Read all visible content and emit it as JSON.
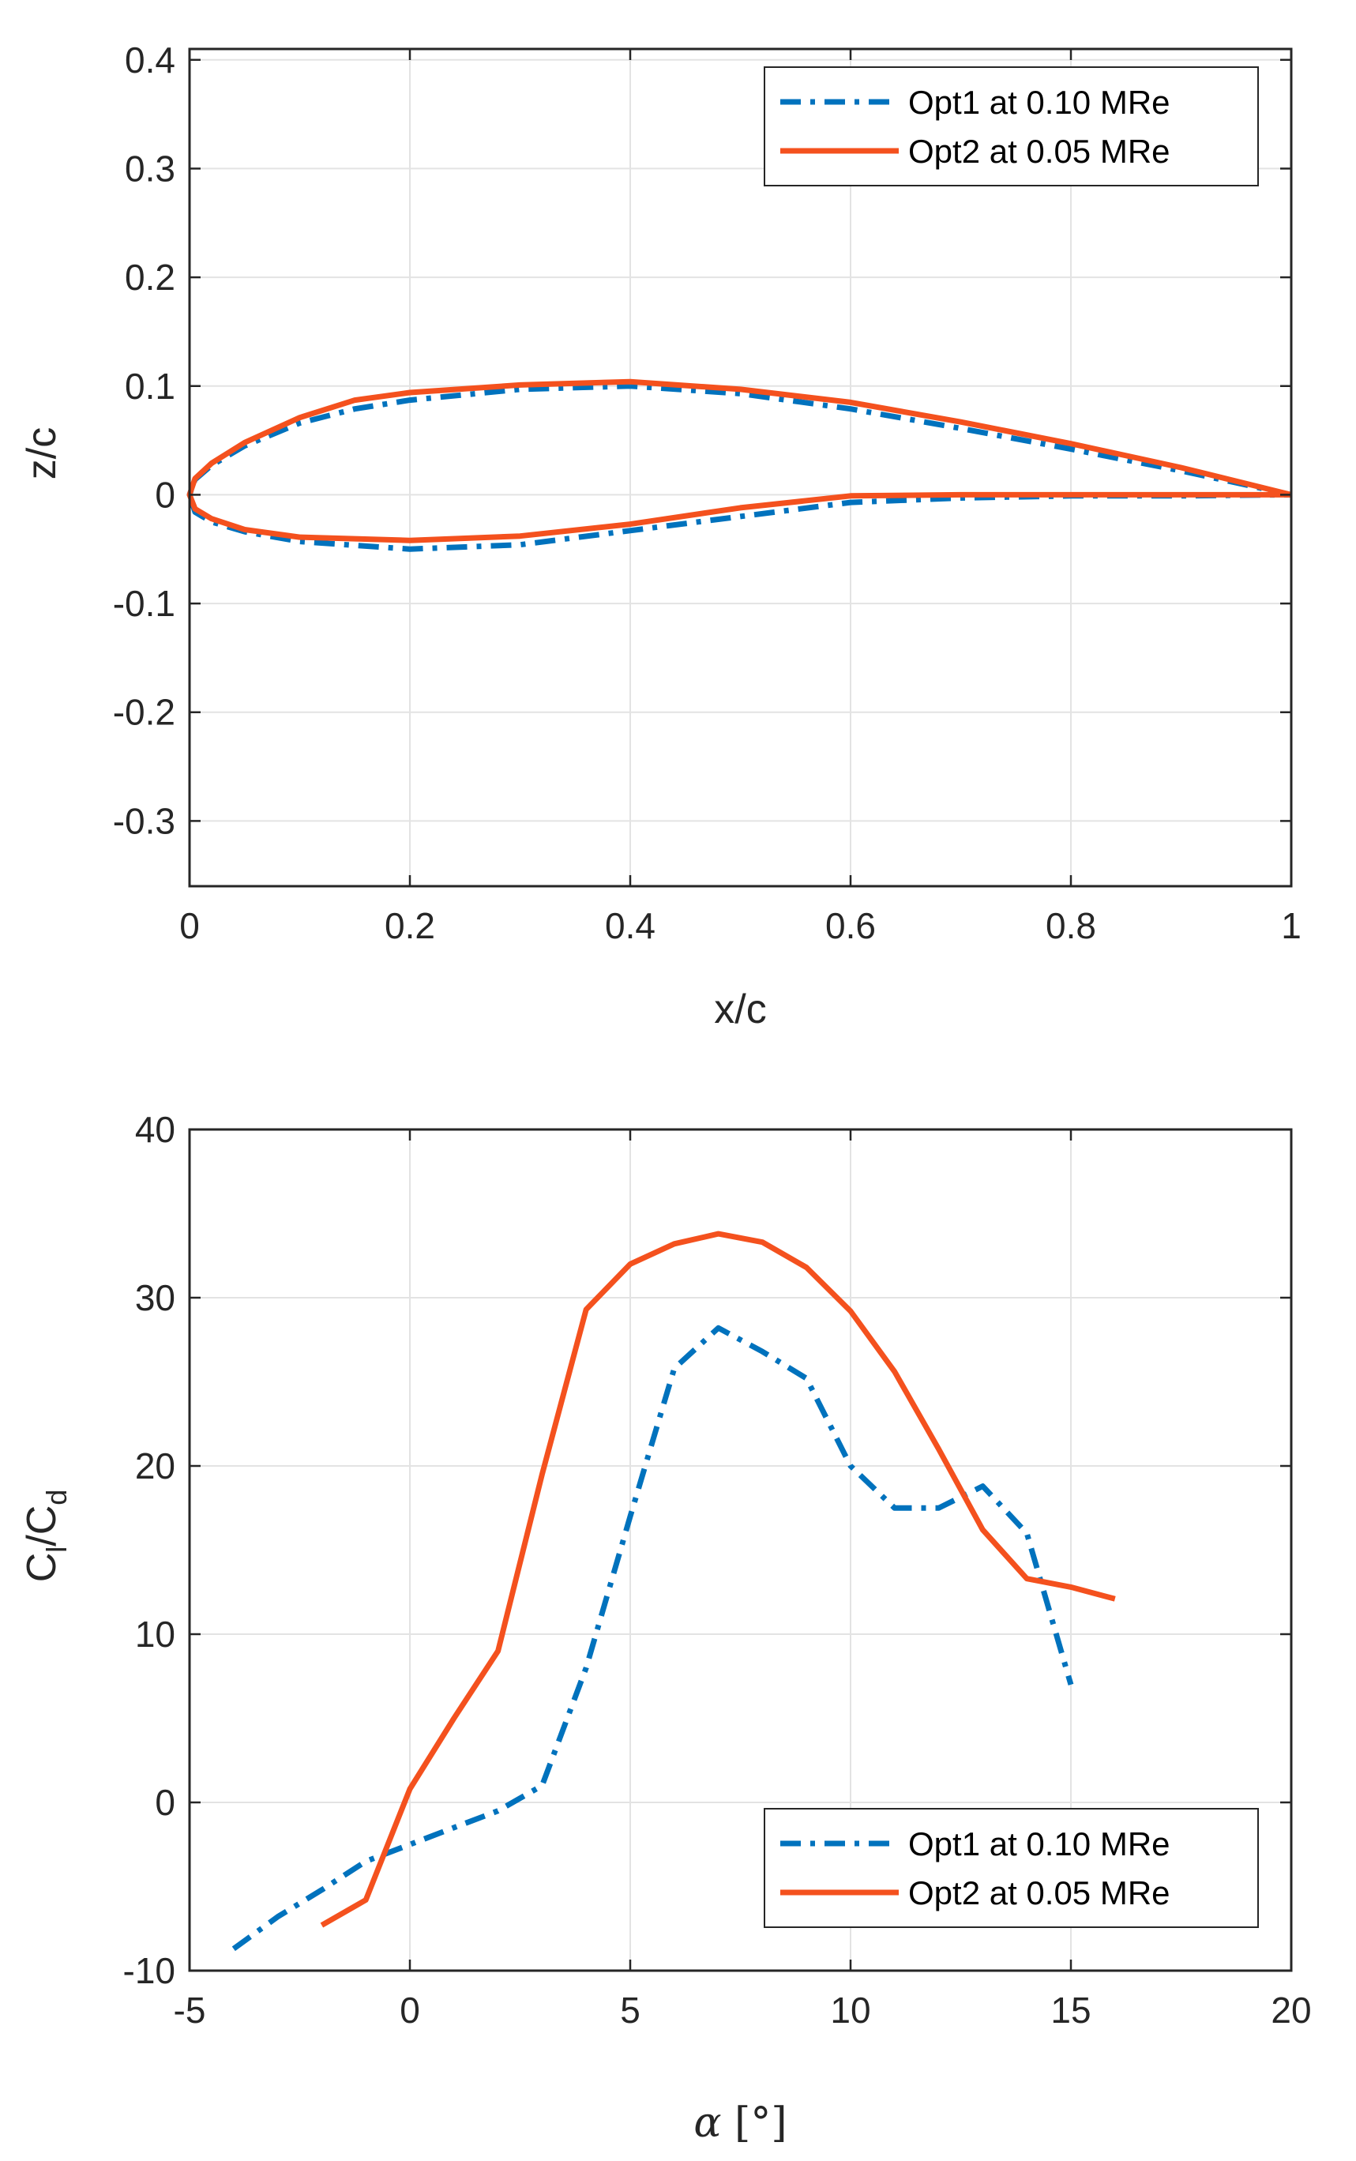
{
  "colors": {
    "opt1": "#0072BD",
    "opt2": "#F4511E"
  },
  "chart_data": [
    {
      "type": "line",
      "xlabel": "x/c",
      "ylabel": "z/c",
      "xlim": [
        0,
        1
      ],
      "ylim": [
        -0.36,
        0.41
      ],
      "xticks": [
        0,
        0.2,
        0.4,
        0.6,
        0.8,
        1
      ],
      "xtick_labels": [
        "0",
        "0.2",
        "0.4",
        "0.6",
        "0.8",
        "1"
      ],
      "yticks": [
        -0.3,
        -0.2,
        -0.1,
        0,
        0.1,
        0.2,
        0.3,
        0.4
      ],
      "ytick_labels": [
        "-0.3",
        "-0.2",
        "-0.1",
        "0",
        "0.1",
        "0.2",
        "0.3",
        "0.4"
      ],
      "grid": true,
      "legend_position": "top-right",
      "series": [
        {
          "name": "Opt1 at 0.10 MRe",
          "style": "dash-dot",
          "color": "#0072BD",
          "x": [
            1.0,
            0.9,
            0.8,
            0.7,
            0.6,
            0.5,
            0.4,
            0.3,
            0.2,
            0.15,
            0.1,
            0.05,
            0.02,
            0.005,
            0.0,
            0.005,
            0.02,
            0.05,
            0.1,
            0.2,
            0.3,
            0.4,
            0.5,
            0.6,
            0.7,
            0.8,
            0.9,
            1.0
          ],
          "y": [
            0.0,
            0.022,
            0.042,
            0.061,
            0.079,
            0.093,
            0.1,
            0.097,
            0.087,
            0.079,
            0.066,
            0.045,
            0.027,
            0.014,
            0.0,
            -0.016,
            -0.025,
            -0.034,
            -0.043,
            -0.05,
            -0.046,
            -0.033,
            -0.02,
            -0.007,
            -0.003,
            -0.001,
            -0.001,
            0.0
          ]
        },
        {
          "name": "Opt2 at 0.05 MRe",
          "style": "solid",
          "color": "#F4511E",
          "x": [
            1.0,
            0.9,
            0.8,
            0.7,
            0.6,
            0.5,
            0.4,
            0.3,
            0.2,
            0.15,
            0.1,
            0.05,
            0.02,
            0.005,
            0.0,
            0.005,
            0.02,
            0.05,
            0.1,
            0.2,
            0.3,
            0.4,
            0.5,
            0.6,
            0.7,
            0.8,
            0.9,
            1.0
          ],
          "y": [
            0.0,
            0.025,
            0.047,
            0.067,
            0.085,
            0.097,
            0.104,
            0.101,
            0.094,
            0.087,
            0.071,
            0.048,
            0.029,
            0.015,
            0.0,
            -0.013,
            -0.022,
            -0.032,
            -0.039,
            -0.042,
            -0.038,
            -0.027,
            -0.012,
            -0.001,
            0.0,
            0.0,
            0.0,
            0.0
          ]
        }
      ]
    },
    {
      "type": "line",
      "xlabel": "α [°]",
      "ylabel": "Cl/Cd",
      "xlim": [
        -5,
        20
      ],
      "ylim": [
        -10,
        40
      ],
      "xticks": [
        -5,
        0,
        5,
        10,
        15,
        20
      ],
      "xtick_labels": [
        "-5",
        "0",
        "5",
        "10",
        "15",
        "20"
      ],
      "yticks": [
        -10,
        0,
        10,
        20,
        30,
        40
      ],
      "ytick_labels": [
        "-10",
        "0",
        "10",
        "20",
        "30",
        "40"
      ],
      "grid": true,
      "legend_position": "bottom-right",
      "series": [
        {
          "name": "Opt1 at 0.10 MRe",
          "style": "dash-dot",
          "color": "#0072BD",
          "x": [
            -4,
            -3,
            -2,
            -1,
            0,
            1,
            2,
            3,
            4,
            5,
            6,
            7,
            8,
            9,
            10,
            11,
            12,
            13,
            14,
            15
          ],
          "y": [
            -8.7,
            -6.8,
            -5.2,
            -3.5,
            -2.5,
            -1.5,
            -0.5,
            1.0,
            8.0,
            17.0,
            25.8,
            28.2,
            26.8,
            25.2,
            20.0,
            17.5,
            17.5,
            18.8,
            16.0,
            7.0
          ]
        },
        {
          "name": "Opt2 at 0.05 MRe",
          "style": "solid",
          "color": "#F4511E",
          "x": [
            -2,
            -1,
            0,
            1,
            2,
            3,
            4,
            5,
            6,
            7,
            8,
            9,
            10,
            11,
            12,
            13,
            14,
            15,
            16
          ],
          "y": [
            -7.3,
            -5.8,
            0.8,
            5.0,
            9.0,
            19.5,
            29.3,
            32.0,
            33.2,
            33.8,
            33.3,
            31.8,
            29.2,
            25.6,
            21.0,
            16.2,
            13.3,
            12.8,
            12.1
          ]
        }
      ]
    }
  ]
}
